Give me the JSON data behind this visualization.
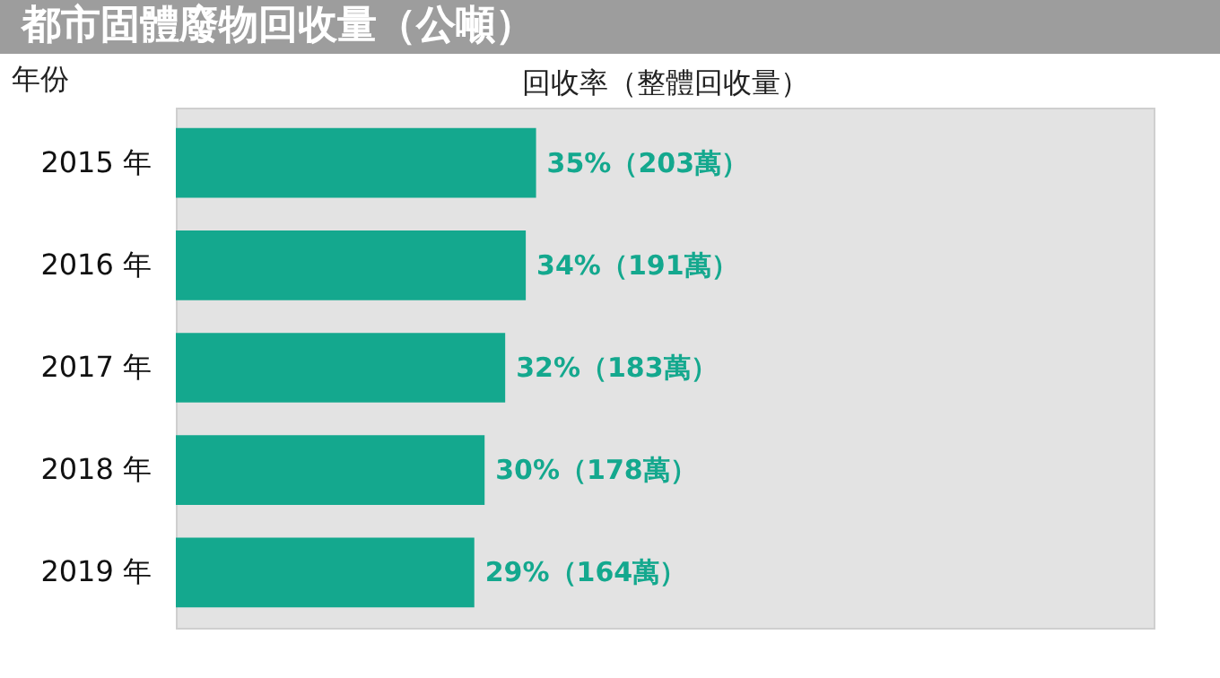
{
  "chart_data": {
    "type": "bar",
    "orientation": "horizontal",
    "title": "都市固體廢物回收量（公噸）",
    "xlabel": "回收率（整體回收量）",
    "ylabel": "年份",
    "categories": [
      "2015 年",
      "2016 年",
      "2017 年",
      "2018 年",
      "2019 年"
    ],
    "values": [
      35,
      34,
      32,
      30,
      29
    ],
    "value_labels": [
      "35%（203萬）",
      "34%（191萬）",
      "32%（183萬）",
      "30%（178萬）",
      "29%（164萬）"
    ],
    "xlim": [
      0,
      95
    ],
    "tick_labels": "y",
    "color": "#14a88e"
  }
}
